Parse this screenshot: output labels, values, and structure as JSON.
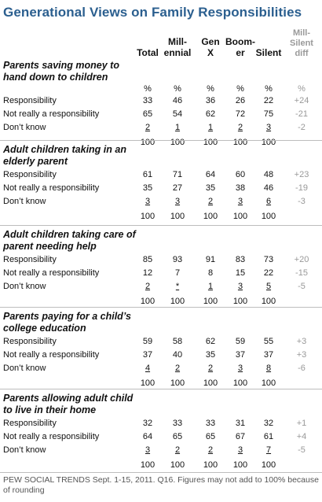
{
  "title": "Generational Views on Family Responsibilities",
  "headers": {
    "total": "Total",
    "millennial": "Mill-\nennial",
    "genx": "Gen\nX",
    "boomer": "Boom-\ner",
    "silent": "Silent",
    "diff": "Mill-\nSilent\ndiff"
  },
  "chart_data": {
    "type": "table",
    "columns": [
      "Total",
      "Millennial",
      "Gen X",
      "Boomer",
      "Silent",
      "Mill-Silent diff"
    ],
    "sections": [
      {
        "question": "Parents saving money to hand down to children",
        "units": [
          "%",
          "%",
          "%",
          "%",
          "%",
          "%"
        ],
        "rows": [
          {
            "label": "Responsibility",
            "values": [
              "33",
              "46",
              "36",
              "26",
              "22"
            ],
            "diff": "+24"
          },
          {
            "label": "Not really a responsibility",
            "values": [
              "65",
              "54",
              "62",
              "72",
              "75"
            ],
            "diff": "-21"
          },
          {
            "label": "Don’t know",
            "values": [
              "2",
              "1",
              "1",
              "2",
              "3"
            ],
            "diff": "-2"
          }
        ],
        "totals": [
          "100",
          "100",
          "100",
          "100",
          "100"
        ]
      },
      {
        "question": "Adult children taking in an elderly parent",
        "rows": [
          {
            "label": "Responsibility",
            "values": [
              "61",
              "71",
              "64",
              "60",
              "48"
            ],
            "diff": "+23"
          },
          {
            "label": "Not really a responsibility",
            "values": [
              "35",
              "27",
              "35",
              "38",
              "46"
            ],
            "diff": "-19"
          },
          {
            "label": "Don’t know",
            "values": [
              "3",
              "3",
              "2",
              "3",
              "6"
            ],
            "diff": "-3"
          }
        ],
        "totals": [
          "100",
          "100",
          "100",
          "100",
          "100"
        ]
      },
      {
        "question": "Adult children taking care of parent needing help",
        "rows": [
          {
            "label": "Responsibility",
            "values": [
              "85",
              "93",
              "91",
              "83",
              "73"
            ],
            "diff": "+20"
          },
          {
            "label": "Not really a responsibility",
            "values": [
              "12",
              "7",
              "8",
              "15",
              "22"
            ],
            "diff": "-15"
          },
          {
            "label": "Don’t know",
            "values": [
              "2",
              "*",
              "1",
              "3",
              "5"
            ],
            "diff": "-5"
          }
        ],
        "totals": [
          "100",
          "100",
          "100",
          "100",
          "100"
        ]
      },
      {
        "question": "Parents paying for a child’s college education",
        "rows": [
          {
            "label": "Responsibility",
            "values": [
              "59",
              "58",
              "62",
              "59",
              "55"
            ],
            "diff": "+3"
          },
          {
            "label": "Not really a responsibility",
            "values": [
              "37",
              "40",
              "35",
              "37",
              "37"
            ],
            "diff": "+3"
          },
          {
            "label": "Don’t know",
            "values": [
              "4",
              "2",
              "2",
              "3",
              "8"
            ],
            "diff": "-6"
          }
        ],
        "totals": [
          "100",
          "100",
          "100",
          "100",
          "100"
        ]
      },
      {
        "question": "Parents allowing adult child to live in their home",
        "rows": [
          {
            "label": "Responsibility",
            "values": [
              "32",
              "33",
              "33",
              "31",
              "32"
            ],
            "diff": "+1"
          },
          {
            "label": "Not really a responsibility",
            "values": [
              "64",
              "65",
              "65",
              "67",
              "61"
            ],
            "diff": "+4"
          },
          {
            "label": "Don’t know",
            "values": [
              "3",
              "2",
              "2",
              "3",
              "7"
            ],
            "diff": "-5"
          }
        ],
        "totals": [
          "100",
          "100",
          "100",
          "100",
          "100"
        ]
      }
    ]
  },
  "footnote": "PEW SOCIAL TRENDS Sept. 1-15, 2011. Q16. Figures may not add to 100% because of rounding"
}
